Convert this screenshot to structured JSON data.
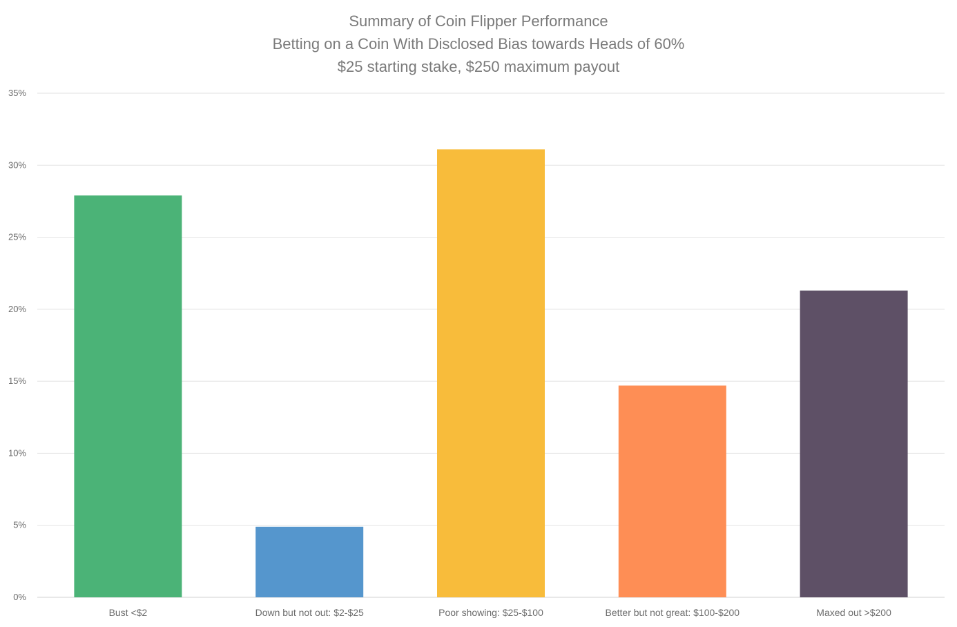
{
  "chart_data": {
    "type": "bar",
    "title": "Summary of Coin Flipper Performance",
    "subtitle_lines": [
      "Betting on a Coin With Disclosed Bias towards Heads of 60%",
      "$25 starting stake, $250 maximum payout"
    ],
    "categories": [
      "Bust <$2",
      "Down but not out: $2-$25",
      "Poor showing: $25-$100",
      "Better but not great: $100-$200",
      "Maxed out >$200"
    ],
    "values": [
      27.9,
      4.9,
      31.1,
      14.7,
      21.3
    ],
    "colors": [
      "#4bb377",
      "#5596cd",
      "#f8bc3b",
      "#fe8e55",
      "#5e5066"
    ],
    "yticks": [
      "0%",
      "5%",
      "10%",
      "15%",
      "20%",
      "25%",
      "30%",
      "35%"
    ],
    "ylim": [
      0,
      35
    ],
    "xlabel": "",
    "ylabel": "",
    "grid": true,
    "legend": "none"
  }
}
